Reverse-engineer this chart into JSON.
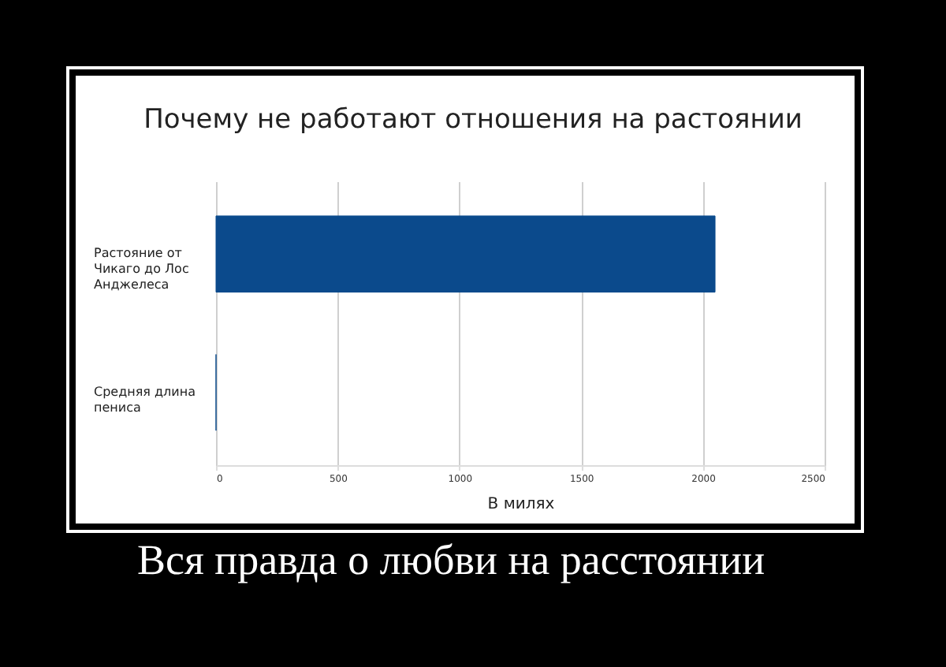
{
  "chart_data": {
    "type": "bar",
    "orientation": "horizontal",
    "title": "Почему не работают отношения на растоянии",
    "categories": [
      "Растояние от Чикаго до Лос Анджелеса",
      "Средняя длина пениса"
    ],
    "values": [
      2050,
      0
    ],
    "color": "#0b4a8c",
    "xlim": [
      0,
      2500
    ],
    "xticks": [
      0,
      500,
      1000,
      1500,
      2000,
      2500
    ],
    "xlabel": "В милях",
    "grid": "x",
    "annotations": [
      "Вся правда о любви на расстоянии"
    ]
  }
}
